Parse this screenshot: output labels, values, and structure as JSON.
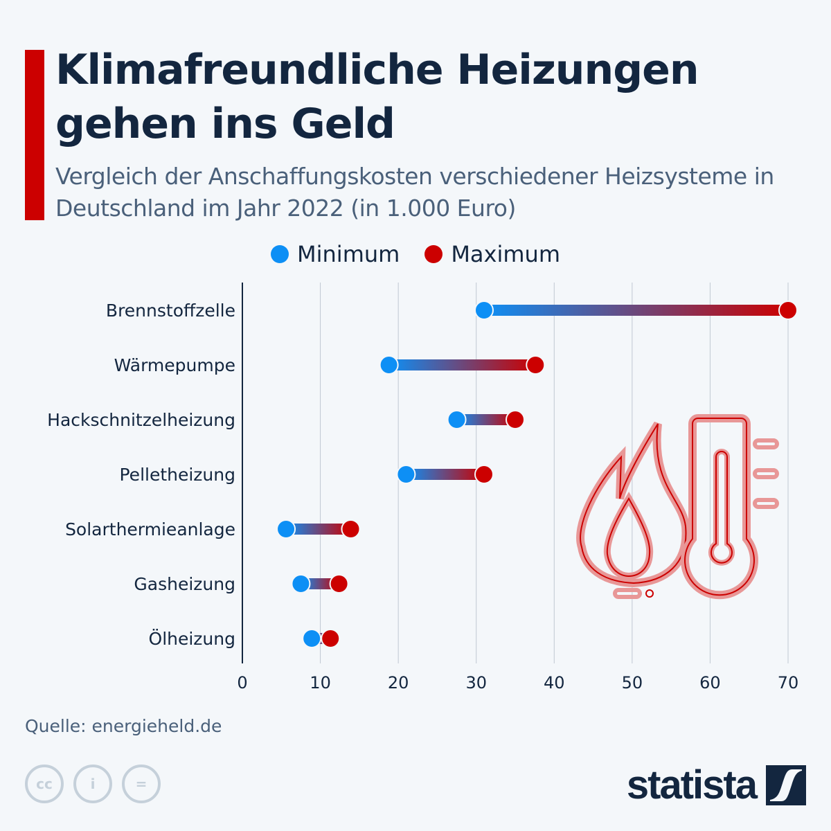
{
  "header": {
    "title": "Klimafreundliche Heizungen gehen ins Geld",
    "subtitle": "Vergleich der Anschaffungskosten verschiedener Heizsysteme in Deutschland im Jahr 2022 (in 1.000 Euro)"
  },
  "colors": {
    "minimum": "#0d8ff5",
    "maximum": "#cc0000",
    "accent": "#cc0000",
    "text": "#13263f"
  },
  "legend": [
    {
      "label": "Minimum",
      "color": "#0d8ff5"
    },
    {
      "label": "Maximum",
      "color": "#cc0000"
    }
  ],
  "chart_data": {
    "type": "dumbbell",
    "title": "Klimafreundliche Heizungen gehen ins Geld",
    "subtitle": "Vergleich der Anschaffungskosten verschiedener Heizsysteme in Deutschland im Jahr 2022 (in 1.000 Euro)",
    "xlabel": "",
    "ylabel": "",
    "xlim": [
      0,
      70
    ],
    "xticks": [
      0,
      10,
      20,
      30,
      40,
      50,
      60,
      70
    ],
    "grid": true,
    "legend_position": "top-center",
    "categories": [
      "Brennstoffzelle",
      "Wärmepumpe",
      "Hackschnitzelheizung",
      "Pelletheizung",
      "Solarthermieanlage",
      "Gasheizung",
      "Ölheizung"
    ],
    "series": [
      {
        "name": "Minimum",
        "values": [
          31,
          18.8,
          27.5,
          21,
          5.6,
          7.5,
          8.9
        ]
      },
      {
        "name": "Maximum",
        "values": [
          70,
          37.6,
          35,
          31,
          13.9,
          12.4,
          11.3
        ]
      }
    ]
  },
  "footer": {
    "source": "Quelle: energieheld.de",
    "brand": "statista",
    "license_icons": [
      "cc-icon",
      "attribution-icon",
      "no-derivatives-icon"
    ]
  }
}
